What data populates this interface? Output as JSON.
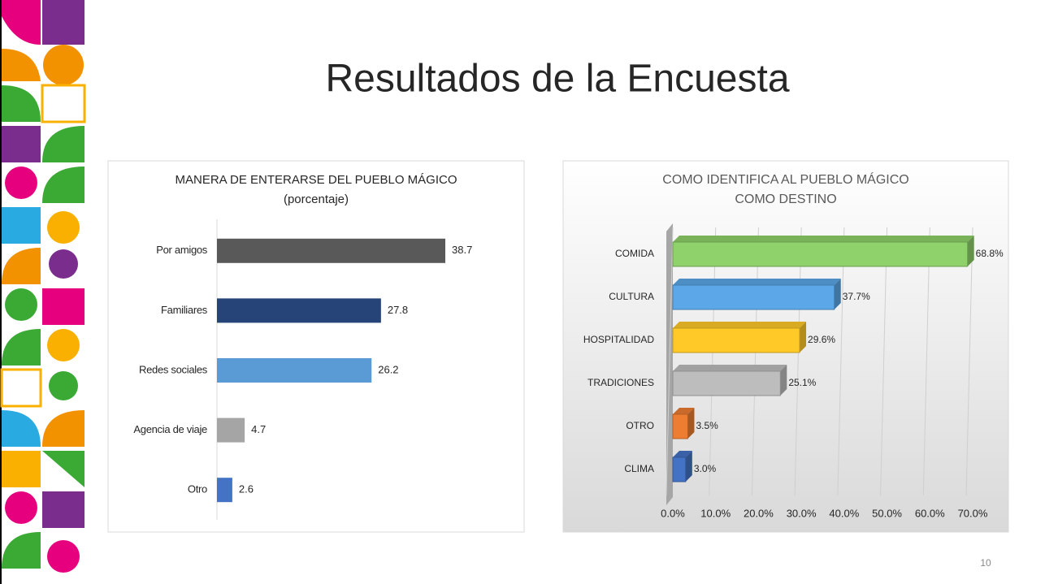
{
  "title": "Resultados de la Encuesta",
  "page_number": "10",
  "chart_data": [
    {
      "type": "hbar",
      "title": "MANERA DE ENTERARSE DEL PUEBLO MÁGICO",
      "subtitle": "(porcentaje)",
      "categories": [
        "Por amigos",
        "Familiares",
        "Redes sociales",
        "Agencia de viaje",
        "Otro"
      ],
      "values": [
        38.7,
        27.8,
        26.2,
        4.7,
        2.6
      ],
      "colors": [
        "#595959",
        "#264478",
        "#5b9bd5",
        "#a5a5a5",
        "#4472c4"
      ]
    },
    {
      "type": "hbar3d",
      "title": [
        "COMO IDENTIFICA AL PUEBLO MÁGICO",
        "COMO DESTINO"
      ],
      "categories": [
        "COMIDA",
        "CULTURA",
        "HOSPITALIDAD",
        "TRADICIONES",
        "OTRO",
        "CLIMA"
      ],
      "values": [
        68.8,
        37.7,
        29.6,
        25.1,
        3.5,
        3.0
      ],
      "value_labels": [
        "68.8%",
        "37.7%",
        "29.6%",
        "25.1%",
        "3.5%",
        "3.0%"
      ],
      "colors": [
        "#8fd16a",
        "#5ba7e8",
        "#ffc928",
        "#bdbdbd",
        "#ed7d31",
        "#4472c4"
      ],
      "xlim": [
        0,
        70
      ],
      "xticks": [
        {
          "value": 0,
          "label": "0.0%"
        },
        {
          "value": 10,
          "label": "10.0%"
        },
        {
          "value": 20,
          "label": "20.0%"
        },
        {
          "value": 30,
          "label": "30.0%"
        },
        {
          "value": 40,
          "label": "40.0%"
        },
        {
          "value": 50,
          "label": "50.0%"
        },
        {
          "value": 60,
          "label": "60.0%"
        },
        {
          "value": 70,
          "label": "70.0%"
        }
      ],
      "grid": true
    }
  ]
}
